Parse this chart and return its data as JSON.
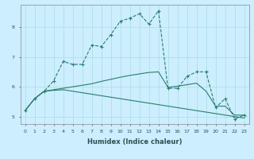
{
  "title": "",
  "xlabel": "Humidex (Indice chaleur)",
  "background_color": "#cceeff",
  "line_color": "#2a7d6e",
  "xlim": [
    -0.5,
    23.5
  ],
  "ylim": [
    4.75,
    8.75
  ],
  "xticks": [
    0,
    1,
    2,
    3,
    4,
    5,
    6,
    7,
    8,
    9,
    10,
    11,
    12,
    13,
    14,
    15,
    16,
    17,
    18,
    19,
    20,
    21,
    22,
    23
  ],
  "yticks": [
    5,
    6,
    7,
    8
  ],
  "series1_x": [
    0,
    1,
    2,
    3,
    4,
    5,
    6,
    7,
    8,
    9,
    10,
    11,
    12,
    13,
    14,
    15,
    16,
    17,
    18,
    19,
    20,
    21,
    22,
    23
  ],
  "series1_y": [
    5.2,
    5.6,
    5.85,
    6.2,
    6.85,
    6.75,
    6.75,
    7.4,
    7.35,
    7.75,
    8.2,
    8.3,
    8.45,
    8.1,
    8.55,
    5.95,
    5.95,
    6.35,
    6.5,
    6.5,
    5.3,
    5.6,
    4.92,
    5.05
  ],
  "series2_x": [
    0,
    1,
    2,
    3,
    4,
    5,
    6,
    7,
    8,
    9,
    10,
    11,
    12,
    13,
    14,
    15,
    16,
    17,
    18,
    19,
    20,
    21,
    22,
    23
  ],
  "series2_y": [
    5.2,
    5.6,
    5.85,
    5.9,
    5.95,
    6.0,
    6.05,
    6.1,
    6.18,
    6.25,
    6.32,
    6.38,
    6.43,
    6.48,
    6.5,
    5.98,
    6.02,
    6.07,
    6.12,
    5.85,
    5.35,
    5.35,
    5.05,
    5.05
  ],
  "series3_x": [
    0,
    1,
    2,
    3,
    4,
    5,
    6,
    7,
    8,
    9,
    10,
    11,
    12,
    13,
    14,
    15,
    16,
    17,
    18,
    19,
    20,
    21,
    22,
    23
  ],
  "series3_y": [
    5.2,
    5.6,
    5.85,
    5.88,
    5.9,
    5.85,
    5.8,
    5.75,
    5.7,
    5.65,
    5.6,
    5.55,
    5.5,
    5.45,
    5.4,
    5.35,
    5.3,
    5.25,
    5.2,
    5.15,
    5.1,
    5.05,
    5.0,
    4.95
  ],
  "grid_color": "#aadddd",
  "marker": "+"
}
